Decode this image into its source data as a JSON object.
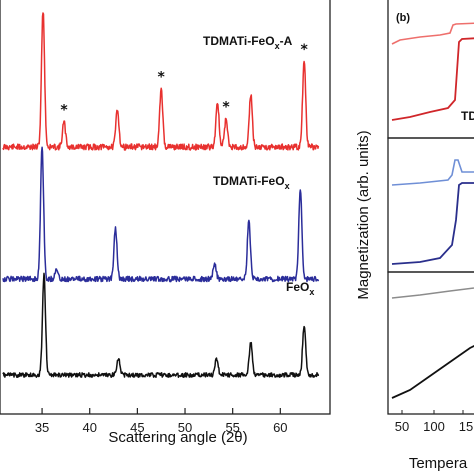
{
  "chart_data": [
    {
      "type": "line",
      "xlabel": "Scattering angle (2θ)",
      "xlim": [
        30,
        64
      ],
      "x_ticks": [
        "35",
        "40",
        "45",
        "50",
        "55",
        "60"
      ],
      "grid": false,
      "series": [
        {
          "name": "TDMATi-FeOx-A",
          "label_base": "TDMATi-FeO",
          "label_sub": "x",
          "label_suffix": "-A",
          "color": "#e8312f",
          "peaks": [
            [
              35.1,
              1.0
            ],
            [
              37.3,
              0.18
            ],
            [
              42.9,
              0.28
            ],
            [
              47.5,
              0.42
            ],
            [
              53.4,
              0.33
            ],
            [
              54.3,
              0.2
            ],
            [
              56.9,
              0.38
            ],
            [
              62.5,
              0.62
            ]
          ],
          "marked_peaks_x": [
            37.3,
            47.5,
            54.3,
            62.5
          ],
          "marker": "*"
        },
        {
          "name": "TDMATi-FeOx",
          "label_base": "TDMATi-FeO",
          "label_sub": "x",
          "label_suffix": "",
          "color": "#2b2d9a",
          "peaks": [
            [
              35.0,
              1.0
            ],
            [
              36.5,
              0.07
            ],
            [
              42.7,
              0.38
            ],
            [
              53.1,
              0.12
            ],
            [
              56.7,
              0.43
            ],
            [
              62.1,
              0.68
            ]
          ],
          "marked_peaks_x": [],
          "marker": ""
        },
        {
          "name": "FeOx",
          "label_base": "FeO",
          "label_sub": "x",
          "label_suffix": "",
          "color": "#111111",
          "peaks": [
            [
              35.2,
              1.0
            ],
            [
              43.0,
              0.17
            ],
            [
              53.3,
              0.17
            ],
            [
              56.9,
              0.33
            ],
            [
              62.5,
              0.5
            ]
          ],
          "marked_peaks_x": [],
          "marker": ""
        }
      ]
    },
    {
      "type": "line",
      "panel_label": "(b)",
      "ylabel": "Magnetization (arb. units)",
      "xlabel": "Tempera",
      "x_ticks": [
        "50",
        "100",
        "15"
      ],
      "partial_label": "TD",
      "series": [
        {
          "color": "#ee6f6c"
        },
        {
          "color": "#d0262a"
        },
        {
          "color": "#6f8fd6"
        },
        {
          "color": "#2a2f8c"
        },
        {
          "color": "#8c8c8c"
        },
        {
          "color": "#111111"
        }
      ]
    }
  ]
}
